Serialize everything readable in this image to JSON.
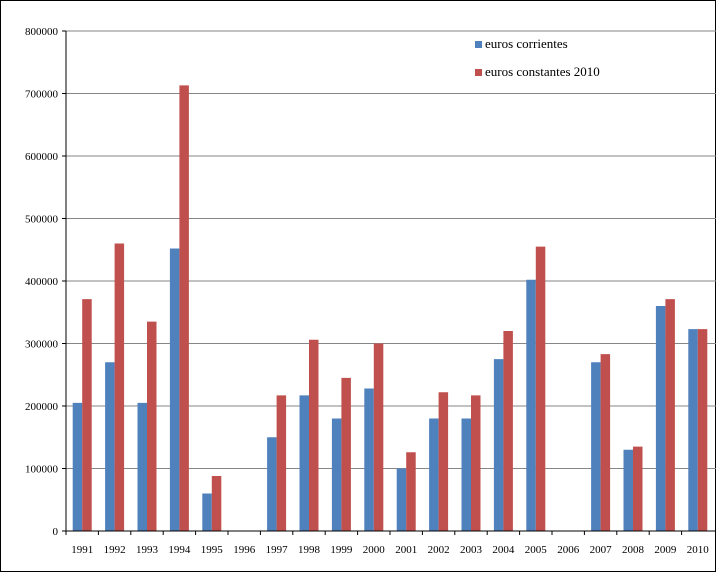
{
  "chart_data": {
    "type": "bar",
    "categories": [
      "1991",
      "1992",
      "1993",
      "1994",
      "1995",
      "1996",
      "1997",
      "1998",
      "1999",
      "2000",
      "2001",
      "2002",
      "2003",
      "2004",
      "2005",
      "2006",
      "2007",
      "2008",
      "2009",
      "2010"
    ],
    "series": [
      {
        "name": "euros corrientes",
        "color": "#4f81bd",
        "values": [
          205000,
          270000,
          205000,
          452000,
          60000,
          0,
          150000,
          217000,
          180000,
          228000,
          100000,
          180000,
          180000,
          275000,
          402000,
          0,
          270000,
          130000,
          360000,
          323000
        ]
      },
      {
        "name": "euros constantes 2010",
        "color": "#c0504d",
        "values": [
          371000,
          460000,
          335000,
          713000,
          88000,
          0,
          217000,
          306000,
          245000,
          300000,
          126000,
          222000,
          217000,
          320000,
          455000,
          0,
          283000,
          135000,
          371000,
          323000
        ]
      }
    ],
    "ylim": [
      0,
      800000
    ],
    "yticks": [
      0,
      100000,
      200000,
      300000,
      400000,
      500000,
      600000,
      700000,
      800000
    ],
    "grid": true,
    "legend_position": "top-right",
    "title": "",
    "xlabel": "",
    "ylabel": ""
  }
}
